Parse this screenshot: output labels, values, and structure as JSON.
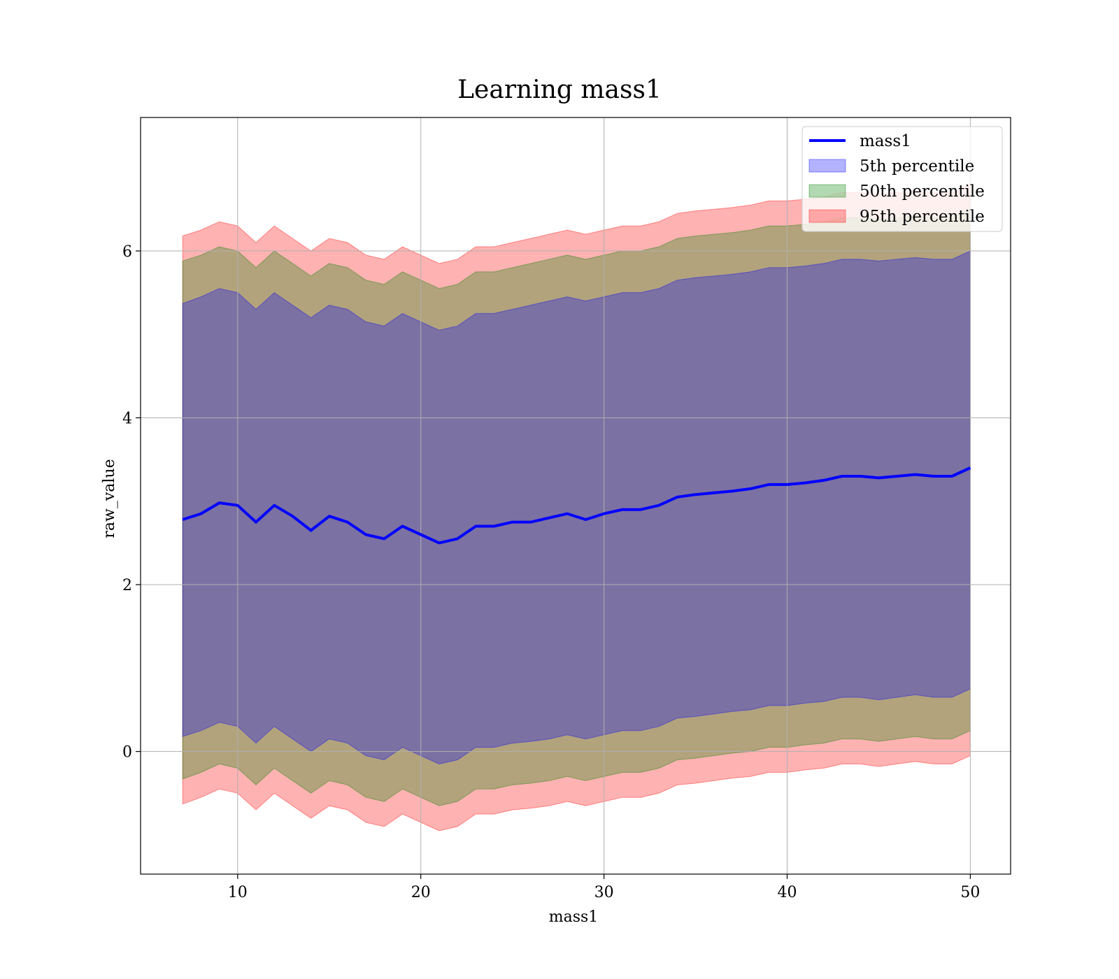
{
  "chart_data": {
    "type": "area",
    "title": "Learning mass1",
    "xlabel": "mass1",
    "ylabel": "raw_value",
    "xlim": [
      4.7,
      52.2
    ],
    "ylim": [
      -1.47,
      7.6
    ],
    "xticks": [
      10,
      20,
      30,
      40,
      50
    ],
    "yticks": [
      0,
      2,
      4,
      6
    ],
    "grid": true,
    "legend_position": "top-right",
    "legend": [
      "mass1",
      "5th percentile",
      "50th percentile",
      "95th percentile"
    ],
    "colors": {
      "line": "#0000ff",
      "band_5th": "#0000ff",
      "band_50th": "#008000",
      "band_95th": "#ff0000"
    },
    "x": [
      7,
      8,
      9,
      10,
      11,
      12,
      13,
      14,
      15,
      16,
      17,
      18,
      19,
      20,
      21,
      22,
      23,
      24,
      25,
      26,
      27,
      28,
      29,
      30,
      31,
      32,
      33,
      34,
      35,
      36,
      37,
      38,
      39,
      40,
      41,
      42,
      43,
      44,
      45,
      46,
      47,
      48,
      49,
      50
    ],
    "series": [
      {
        "name": "mass1",
        "values": [
          2.78,
          2.85,
          2.98,
          2.95,
          2.75,
          2.95,
          2.82,
          2.65,
          2.82,
          2.75,
          2.6,
          2.55,
          2.7,
          2.6,
          2.5,
          2.55,
          2.7,
          2.7,
          2.75,
          2.75,
          2.8,
          2.85,
          2.78,
          2.85,
          2.9,
          2.9,
          2.95,
          3.05,
          3.08,
          3.1,
          3.12,
          3.15,
          3.2,
          3.2,
          3.22,
          3.25,
          3.3,
          3.3,
          3.28,
          3.3,
          3.32,
          3.3,
          3.3,
          3.4
        ]
      },
      {
        "name": "5th percentile",
        "lower": [
          0.18,
          0.25,
          0.35,
          0.3,
          0.1,
          0.3,
          0.15,
          0.0,
          0.15,
          0.1,
          -0.05,
          -0.1,
          0.05,
          -0.05,
          -0.15,
          -0.1,
          0.05,
          0.05,
          0.1,
          0.12,
          0.15,
          0.2,
          0.15,
          0.2,
          0.25,
          0.25,
          0.3,
          0.4,
          0.42,
          0.45,
          0.48,
          0.5,
          0.55,
          0.55,
          0.58,
          0.6,
          0.65,
          0.65,
          0.62,
          0.65,
          0.68,
          0.65,
          0.65,
          0.75
        ],
        "upper": [
          5.37,
          5.45,
          5.55,
          5.5,
          5.3,
          5.5,
          5.35,
          5.2,
          5.35,
          5.3,
          5.15,
          5.1,
          5.25,
          5.15,
          5.05,
          5.1,
          5.25,
          5.25,
          5.3,
          5.35,
          5.4,
          5.45,
          5.4,
          5.45,
          5.5,
          5.5,
          5.55,
          5.65,
          5.68,
          5.7,
          5.72,
          5.75,
          5.8,
          5.8,
          5.82,
          5.85,
          5.9,
          5.9,
          5.88,
          5.9,
          5.92,
          5.9,
          5.9,
          6.0
        ]
      },
      {
        "name": "50th percentile",
        "lower": [
          -0.33,
          -0.25,
          -0.15,
          -0.2,
          -0.4,
          -0.2,
          -0.35,
          -0.5,
          -0.35,
          -0.4,
          -0.55,
          -0.6,
          -0.45,
          -0.55,
          -0.65,
          -0.6,
          -0.45,
          -0.45,
          -0.4,
          -0.38,
          -0.35,
          -0.3,
          -0.35,
          -0.3,
          -0.25,
          -0.25,
          -0.2,
          -0.1,
          -0.08,
          -0.05,
          -0.02,
          0.0,
          0.05,
          0.05,
          0.08,
          0.1,
          0.15,
          0.15,
          0.12,
          0.15,
          0.18,
          0.15,
          0.15,
          0.25
        ],
        "upper": [
          5.88,
          5.95,
          6.05,
          6.0,
          5.8,
          6.0,
          5.85,
          5.7,
          5.85,
          5.8,
          5.65,
          5.6,
          5.75,
          5.65,
          5.55,
          5.6,
          5.75,
          5.75,
          5.8,
          5.85,
          5.9,
          5.95,
          5.9,
          5.95,
          6.0,
          6.0,
          6.05,
          6.15,
          6.18,
          6.2,
          6.22,
          6.25,
          6.3,
          6.3,
          6.32,
          6.35,
          6.4,
          6.4,
          6.38,
          6.4,
          6.42,
          6.4,
          6.4,
          6.5
        ]
      },
      {
        "name": "95th percentile",
        "lower": [
          -0.63,
          -0.55,
          -0.45,
          -0.5,
          -0.7,
          -0.5,
          -0.65,
          -0.8,
          -0.65,
          -0.7,
          -0.85,
          -0.9,
          -0.75,
          -0.85,
          -0.95,
          -0.9,
          -0.75,
          -0.75,
          -0.7,
          -0.68,
          -0.65,
          -0.6,
          -0.65,
          -0.6,
          -0.55,
          -0.55,
          -0.5,
          -0.4,
          -0.38,
          -0.35,
          -0.32,
          -0.3,
          -0.25,
          -0.25,
          -0.22,
          -0.2,
          -0.15,
          -0.15,
          -0.18,
          -0.15,
          -0.12,
          -0.15,
          -0.15,
          -0.05
        ],
        "upper": [
          6.18,
          6.25,
          6.35,
          6.3,
          6.1,
          6.3,
          6.15,
          6.0,
          6.15,
          6.1,
          5.95,
          5.9,
          6.05,
          5.95,
          5.85,
          5.9,
          6.05,
          6.05,
          6.1,
          6.15,
          6.2,
          6.25,
          6.2,
          6.25,
          6.3,
          6.3,
          6.35,
          6.45,
          6.48,
          6.5,
          6.52,
          6.55,
          6.6,
          6.6,
          6.62,
          6.65,
          6.7,
          6.7,
          6.68,
          6.7,
          6.72,
          6.7,
          6.7,
          6.8
        ]
      }
    ]
  }
}
